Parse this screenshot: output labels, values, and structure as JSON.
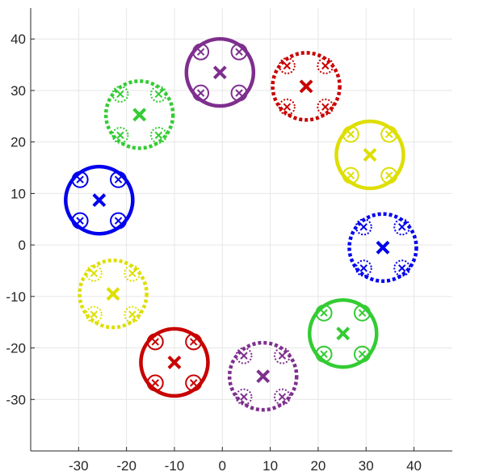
{
  "chart_data": {
    "type": "scatter",
    "title": "",
    "xlabel": "",
    "ylabel": "",
    "xlim": [
      -40,
      48
    ],
    "ylim": [
      -40,
      46
    ],
    "xticks": [
      -30,
      -20,
      -10,
      0,
      10,
      20,
      30,
      40
    ],
    "yticks": [
      -30,
      -20,
      -10,
      0,
      10,
      20,
      30,
      40
    ],
    "xtick_labels": [
      "-30",
      "-20",
      "-10",
      "0",
      "10",
      "20",
      "30",
      "40"
    ],
    "ytick_labels": [
      "-30",
      "-20",
      "-10",
      "0",
      "10",
      "20",
      "30",
      "40"
    ],
    "grid": true,
    "colors": {
      "purple": "#7e2f8e",
      "red": "#c80000",
      "yellow": "#dede00",
      "blue": "#0000ee",
      "green": "#33cc33"
    },
    "clusters": [
      {
        "color": "purple",
        "center": [
          -0.5,
          33.5
        ],
        "radius": 7,
        "line": "solid",
        "sub_radius": 1.6,
        "sub_line": "solid",
        "subs": [
          [
            -4.5,
            37.5
          ],
          [
            3.5,
            37.5
          ],
          [
            -4.5,
            29.5
          ],
          [
            3.5,
            29.5
          ]
        ]
      },
      {
        "color": "red",
        "center": [
          17.5,
          30.8
        ],
        "radius": 7,
        "line": "dotted",
        "sub_radius": 1.6,
        "sub_line": "dotted",
        "subs": [
          [
            13.5,
            34.8
          ],
          [
            21.5,
            34.8
          ],
          [
            13.5,
            26.8
          ],
          [
            21.5,
            26.8
          ]
        ]
      },
      {
        "color": "yellow",
        "center": [
          30.8,
          17.5
        ],
        "radius": 7,
        "line": "solid",
        "sub_radius": 1.6,
        "sub_line": "solid",
        "subs": [
          [
            26.8,
            21.5
          ],
          [
            34.8,
            21.5
          ],
          [
            26.8,
            13.5
          ],
          [
            34.8,
            13.5
          ]
        ]
      },
      {
        "color": "blue",
        "center": [
          33.5,
          -0.5
        ],
        "radius": 7,
        "line": "dotted",
        "sub_radius": 1.6,
        "sub_line": "dotted",
        "subs": [
          [
            29.5,
            3.5
          ],
          [
            37.5,
            3.5
          ],
          [
            29.5,
            -4.5
          ],
          [
            37.5,
            -4.5
          ]
        ]
      },
      {
        "color": "green",
        "center": [
          25.2,
          -17.2
        ],
        "radius": 7,
        "line": "solid",
        "sub_radius": 1.6,
        "sub_line": "solid",
        "subs": [
          [
            21.2,
            -13.2
          ],
          [
            29.2,
            -13.2
          ],
          [
            21.2,
            -21.2
          ],
          [
            29.2,
            -21.2
          ]
        ]
      },
      {
        "color": "purple",
        "center": [
          8.5,
          -25.5
        ],
        "radius": 7,
        "line": "dotted",
        "sub_radius": 1.6,
        "sub_line": "dotted",
        "subs": [
          [
            4.5,
            -21.5
          ],
          [
            12.5,
            -21.5
          ],
          [
            4.5,
            -29.5
          ],
          [
            12.5,
            -29.5
          ]
        ]
      },
      {
        "color": "red",
        "center": [
          -10,
          -22.8
        ],
        "radius": 7,
        "line": "solid",
        "sub_radius": 1.6,
        "sub_line": "solid",
        "subs": [
          [
            -14,
            -18.8
          ],
          [
            -6,
            -18.8
          ],
          [
            -14,
            -26.8
          ],
          [
            -6,
            -26.8
          ]
        ]
      },
      {
        "color": "yellow",
        "center": [
          -22.8,
          -9.5
        ],
        "radius": 7,
        "line": "dotted",
        "sub_radius": 1.6,
        "sub_line": "dotted",
        "subs": [
          [
            -26.8,
            -5.5
          ],
          [
            -18.8,
            -5.5
          ],
          [
            -26.8,
            -13.5
          ],
          [
            -18.8,
            -13.5
          ]
        ]
      },
      {
        "color": "blue",
        "center": [
          -25.7,
          8.7
        ],
        "radius": 7,
        "line": "solid",
        "sub_radius": 1.6,
        "sub_line": "solid",
        "subs": [
          [
            -29.7,
            12.7
          ],
          [
            -21.7,
            12.7
          ],
          [
            -29.7,
            4.7
          ],
          [
            -21.7,
            4.7
          ]
        ]
      },
      {
        "color": "green",
        "center": [
          -17.3,
          25.3
        ],
        "radius": 7,
        "line": "dotted",
        "sub_radius": 1.6,
        "sub_line": "dotted",
        "subs": [
          [
            -21.3,
            29.3
          ],
          [
            -13.3,
            29.3
          ],
          [
            -21.3,
            21.3
          ],
          [
            -13.3,
            21.3
          ]
        ]
      }
    ]
  }
}
